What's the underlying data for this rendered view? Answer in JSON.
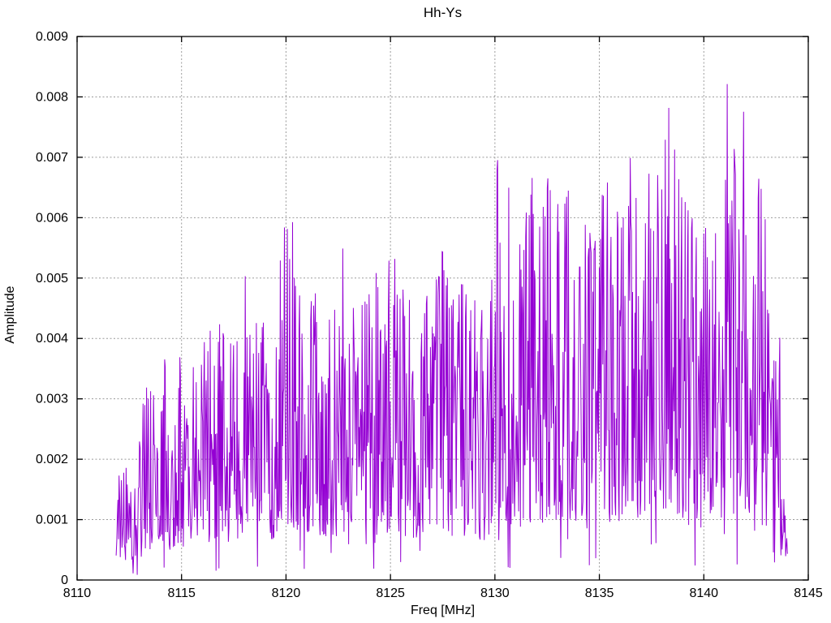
{
  "chart_data": {
    "type": "line",
    "title": "Hh-Ys",
    "xlabel": "Freq [MHz]",
    "ylabel": "Amplitude",
    "xlim": [
      8110,
      8145
    ],
    "ylim": [
      0,
      0.009
    ],
    "x_ticks": [
      8110,
      8115,
      8120,
      8125,
      8130,
      8135,
      8140,
      8145
    ],
    "x_tick_labels": [
      "8110",
      "8115",
      "8120",
      "8125",
      "8130",
      "8135",
      "8140",
      "8145"
    ],
    "y_ticks": [
      0,
      0.001,
      0.002,
      0.003,
      0.004,
      0.005,
      0.006,
      0.007,
      0.008,
      0.009
    ],
    "y_tick_labels": [
      "0",
      "0.001",
      "0.002",
      "0.003",
      "0.004",
      "0.005",
      "0.006",
      "0.007",
      "0.008",
      "0.009"
    ],
    "grid": true,
    "grid_style": "dotted",
    "grid_color": "#9a9a9a",
    "border_color": "#000000",
    "background_color": "#ffffff",
    "line_color": "#9400d3",
    "legend": "none",
    "series": [
      {
        "name": "Hh-Ys",
        "style": "dense-noisy-spectrum",
        "x_start": 8111.87,
        "x_end": 8144.0,
        "n_points": 1150,
        "seed": 20240917,
        "noise": {
          "floor": 0.14,
          "exponent": 1.5,
          "deep_dip_prob": 0.035,
          "deep_dip_factor": 0.22
        },
        "peak_max": [
          8138.5,
          0.0088
        ],
        "envelope": [
          [
            8111.87,
            0.0009
          ],
          [
            8112.15,
            0.0027
          ],
          [
            8112.5,
            0.0019
          ],
          [
            8113.0,
            0.0026
          ],
          [
            8113.4,
            0.0035
          ],
          [
            8113.8,
            0.0036
          ],
          [
            8114.1,
            0.0043
          ],
          [
            8114.6,
            0.0037
          ],
          [
            8115.2,
            0.0042
          ],
          [
            8115.8,
            0.0038
          ],
          [
            8116.3,
            0.0042
          ],
          [
            8117.0,
            0.0044
          ],
          [
            8117.5,
            0.0046
          ],
          [
            8118.1,
            0.0051
          ],
          [
            8118.7,
            0.0043
          ],
          [
            8119.3,
            0.0047
          ],
          [
            8119.9,
            0.0059
          ],
          [
            8120.2,
            0.0064
          ],
          [
            8120.7,
            0.0048
          ],
          [
            8121.3,
            0.0061
          ],
          [
            8121.9,
            0.0045
          ],
          [
            8122.5,
            0.0047
          ],
          [
            8123.0,
            0.0065
          ],
          [
            8123.6,
            0.0048
          ],
          [
            8124.2,
            0.0054
          ],
          [
            8124.8,
            0.0052
          ],
          [
            8125.1,
            0.0064
          ],
          [
            8125.7,
            0.0051
          ],
          [
            8126.3,
            0.0045
          ],
          [
            8126.8,
            0.0059
          ],
          [
            8127.3,
            0.0062
          ],
          [
            8127.8,
            0.005
          ],
          [
            8128.2,
            0.0055
          ],
          [
            8128.7,
            0.0047
          ],
          [
            8129.3,
            0.0046
          ],
          [
            8129.9,
            0.0057
          ],
          [
            8130.1,
            0.0071
          ],
          [
            8130.6,
            0.0066
          ],
          [
            8131.2,
            0.0058
          ],
          [
            8131.8,
            0.0069
          ],
          [
            8132.5,
            0.0067
          ],
          [
            8133.0,
            0.0071
          ],
          [
            8133.4,
            0.0073
          ],
          [
            8134.0,
            0.0061
          ],
          [
            8134.5,
            0.0058
          ],
          [
            8134.9,
            0.0073
          ],
          [
            8135.3,
            0.007
          ],
          [
            8135.9,
            0.0065
          ],
          [
            8136.5,
            0.0073
          ],
          [
            8137.1,
            0.0068
          ],
          [
            8137.8,
            0.0084
          ],
          [
            8138.2,
            0.008
          ],
          [
            8138.5,
            0.0088
          ],
          [
            8138.8,
            0.0071
          ],
          [
            8139.2,
            0.0066
          ],
          [
            8139.7,
            0.006
          ],
          [
            8140.2,
            0.0058
          ],
          [
            8140.7,
            0.0065
          ],
          [
            8141.05,
            0.0087
          ],
          [
            8141.4,
            0.0075
          ],
          [
            8141.9,
            0.0082
          ],
          [
            8142.3,
            0.0074
          ],
          [
            8142.9,
            0.0063
          ],
          [
            8143.2,
            0.0038
          ],
          [
            8143.6,
            0.0045
          ],
          [
            8144.0,
            0.0009
          ]
        ]
      }
    ]
  }
}
